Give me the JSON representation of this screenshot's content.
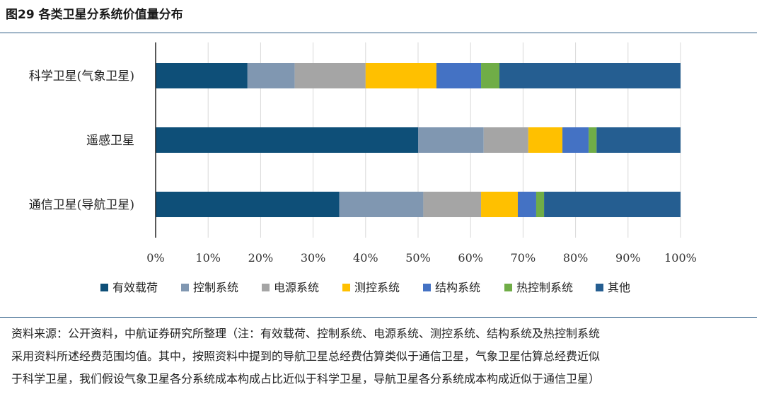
{
  "figure": {
    "title": "图29  各类卫星分系统价值量分布"
  },
  "chart_data": {
    "type": "bar",
    "orientation": "horizontal",
    "stacked": true,
    "categories": [
      "科学卫星(气象卫星)",
      "遥感卫星",
      "通信卫星(导航卫星)"
    ],
    "series": [
      {
        "name": "有效载荷",
        "color": "#0e4f78",
        "values": [
          17.5,
          50.0,
          35.0
        ]
      },
      {
        "name": "控制系统",
        "color": "#8097b1",
        "values": [
          9.0,
          12.5,
          16.0
        ]
      },
      {
        "name": "电源系统",
        "color": "#a5a5a5",
        "values": [
          13.5,
          8.5,
          11.0
        ]
      },
      {
        "name": "测控系统",
        "color": "#ffc000",
        "values": [
          13.5,
          6.5,
          7.0
        ]
      },
      {
        "name": "结构系统",
        "color": "#4472c4",
        "values": [
          8.5,
          5.0,
          3.5
        ]
      },
      {
        "name": "热控制系统",
        "color": "#70ad47",
        "values": [
          3.5,
          1.5,
          1.5
        ]
      },
      {
        "name": "其他",
        "color": "#255e91",
        "values": [
          34.5,
          16.0,
          26.0
        ]
      }
    ],
    "xlim": [
      0,
      100
    ],
    "xticks": [
      "0%",
      "10%",
      "20%",
      "30%",
      "40%",
      "50%",
      "60%",
      "70%",
      "80%",
      "90%",
      "100%"
    ],
    "grid": true,
    "legend_position": "bottom"
  },
  "source": {
    "lines": [
      "资料来源：公开资料，中航证券研究所整理（注：有效载荷、控制系统、电源系统、测控系统、结构系统及热控制系统",
      "采用资料所述经费范围均值。其中，按照资料中提到的导航卫星总经费估算类似于通信卫星，气象卫星估算总经费近似",
      "于科学卫星，我们假设气象卫星各分系统成本构成占比近似于科学卫星，导航卫星各分系统成本构成近似于通信卫星）"
    ]
  }
}
